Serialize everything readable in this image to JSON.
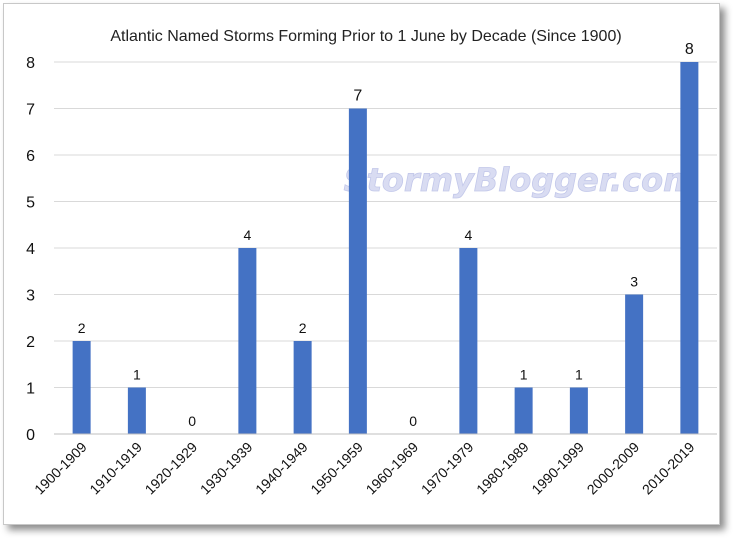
{
  "chart_data": {
    "type": "bar",
    "title": "Atlantic Named Storms Forming Prior to 1 June by Decade (Since 1900)",
    "categories": [
      "1900-1909",
      "1910-1919",
      "1920-1929",
      "1930-1939",
      "1940-1949",
      "1950-1959",
      "1960-1969",
      "1970-1979",
      "1980-1989",
      "1990-1999",
      "2000-2009",
      "2010-2019"
    ],
    "values": [
      2,
      1,
      0,
      4,
      2,
      7,
      0,
      4,
      1,
      1,
      3,
      8
    ],
    "ylim": [
      0,
      8
    ],
    "yticks": [
      0,
      1,
      2,
      3,
      4,
      5,
      6,
      7,
      8
    ],
    "grid": true,
    "bar_color": "#4472c4",
    "data_labels": true,
    "watermark": "StormyBlogger.com"
  }
}
